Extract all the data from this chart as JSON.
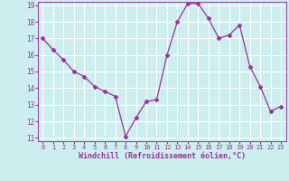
{
  "x": [
    0,
    1,
    2,
    3,
    4,
    5,
    6,
    7,
    8,
    9,
    10,
    11,
    12,
    13,
    14,
    15,
    16,
    17,
    18,
    19,
    20,
    21,
    22,
    23
  ],
  "y": [
    17.0,
    16.3,
    15.7,
    15.0,
    14.7,
    14.1,
    13.8,
    13.5,
    11.1,
    12.2,
    13.2,
    13.3,
    16.0,
    18.0,
    19.1,
    19.1,
    18.2,
    17.0,
    17.2,
    17.8,
    15.3,
    14.1,
    12.6,
    12.9
  ],
  "line_color": "#993399",
  "marker": "D",
  "marker_size": 2.5,
  "bg_color": "#cceeee",
  "grid_color": "#aadddd",
  "xlabel": "Windchill (Refroidissement éolien,°C)",
  "xlabel_color": "#993399",
  "tick_color": "#993399",
  "ylim": [
    11,
    19
  ],
  "yticks": [
    11,
    12,
    13,
    14,
    15,
    16,
    17,
    18,
    19
  ],
  "xticks": [
    0,
    1,
    2,
    3,
    4,
    5,
    6,
    7,
    8,
    9,
    10,
    11,
    12,
    13,
    14,
    15,
    16,
    17,
    18,
    19,
    20,
    21,
    22,
    23
  ],
  "xlim": [
    -0.5,
    23.5
  ]
}
